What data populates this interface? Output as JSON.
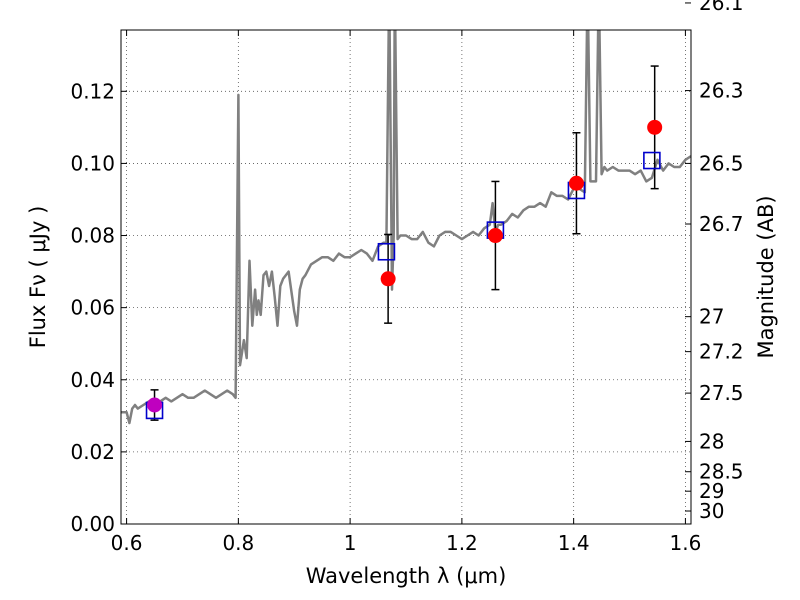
{
  "chart_data": {
    "type": "line",
    "xlabel": "Wavelength  λ (μm)",
    "ylabel": "Flux  Fν ( μJy )",
    "ylabel_right": "Magnitude (AB)",
    "xlim": [
      0.59,
      1.61
    ],
    "ylim": [
      0.0,
      0.137
    ],
    "grid": true,
    "x_ticks": [
      0.6,
      0.8,
      1.0,
      1.2,
      1.4,
      1.6
    ],
    "x_tick_labels": [
      "0.6",
      "0.8",
      "1",
      "1.2",
      "1.4",
      "1.6"
    ],
    "y_ticks": [
      0.0,
      0.02,
      0.04,
      0.06,
      0.08,
      0.1,
      0.12
    ],
    "y_tick_labels": [
      "0.00",
      "0.02",
      "0.04",
      "0.06",
      "0.08",
      "0.10",
      "0.12"
    ],
    "mag_ticks": [
      {
        "flux": 0.1445,
        "label": "26.1"
      },
      {
        "flux": 0.1202,
        "label": "26.3"
      },
      {
        "flux": 0.1,
        "label": "26.5"
      },
      {
        "flux": 0.0832,
        "label": "26.7"
      },
      {
        "flux": 0.0575,
        "label": "27"
      },
      {
        "flux": 0.0478,
        "label": "27.2"
      },
      {
        "flux": 0.0363,
        "label": "27.5"
      },
      {
        "flux": 0.0229,
        "label": "28"
      },
      {
        "flux": 0.0145,
        "label": "28.5"
      },
      {
        "flux": 0.0091,
        "label": "29"
      },
      {
        "flux": 0.0036,
        "label": "30"
      }
    ],
    "colors": {
      "model": "#808080",
      "observed": "#ff0000",
      "observed_first": "#bf00bf",
      "model_box": "#0000cc",
      "errorbar": "#000000",
      "grid": "#555555"
    },
    "model_spectrum": {
      "x": [
        0.59,
        0.6,
        0.605,
        0.61,
        0.615,
        0.62,
        0.63,
        0.64,
        0.65,
        0.66,
        0.67,
        0.68,
        0.69,
        0.7,
        0.71,
        0.72,
        0.73,
        0.74,
        0.75,
        0.76,
        0.77,
        0.78,
        0.79,
        0.795,
        0.8,
        0.803,
        0.806,
        0.81,
        0.815,
        0.82,
        0.825,
        0.83,
        0.833,
        0.836,
        0.84,
        0.845,
        0.85,
        0.855,
        0.86,
        0.865,
        0.87,
        0.875,
        0.88,
        0.89,
        0.9,
        0.905,
        0.91,
        0.915,
        0.92,
        0.93,
        0.94,
        0.95,
        0.96,
        0.97,
        0.98,
        0.99,
        1.0,
        1.01,
        1.02,
        1.03,
        1.04,
        1.05,
        1.06,
        1.065,
        1.07,
        1.075,
        1.078,
        1.08,
        1.085,
        1.09,
        1.1,
        1.11,
        1.12,
        1.13,
        1.14,
        1.15,
        1.16,
        1.17,
        1.18,
        1.19,
        1.2,
        1.21,
        1.22,
        1.23,
        1.24,
        1.25,
        1.255,
        1.26,
        1.265,
        1.27,
        1.28,
        1.29,
        1.3,
        1.31,
        1.32,
        1.33,
        1.34,
        1.35,
        1.36,
        1.37,
        1.38,
        1.39,
        1.4,
        1.41,
        1.42,
        1.425,
        1.43,
        1.44,
        1.445,
        1.45,
        1.455,
        1.46,
        1.47,
        1.48,
        1.49,
        1.5,
        1.51,
        1.52,
        1.53,
        1.54,
        1.55,
        1.56,
        1.57,
        1.58,
        1.59,
        1.6,
        1.61
      ],
      "y": [
        0.031,
        0.031,
        0.028,
        0.032,
        0.033,
        0.032,
        0.033,
        0.034,
        0.033,
        0.034,
        0.035,
        0.034,
        0.035,
        0.036,
        0.035,
        0.035,
        0.036,
        0.037,
        0.036,
        0.035,
        0.036,
        0.037,
        0.036,
        0.035,
        0.119,
        0.044,
        0.047,
        0.051,
        0.046,
        0.073,
        0.055,
        0.065,
        0.058,
        0.062,
        0.058,
        0.069,
        0.07,
        0.066,
        0.07,
        0.063,
        0.055,
        0.066,
        0.068,
        0.07,
        0.059,
        0.055,
        0.065,
        0.068,
        0.069,
        0.072,
        0.073,
        0.074,
        0.074,
        0.073,
        0.075,
        0.074,
        0.074,
        0.075,
        0.076,
        0.075,
        0.073,
        0.077,
        0.078,
        0.078,
        0.15,
        0.065,
        0.08,
        0.15,
        0.079,
        0.08,
        0.08,
        0.079,
        0.079,
        0.081,
        0.078,
        0.077,
        0.08,
        0.081,
        0.081,
        0.08,
        0.079,
        0.08,
        0.081,
        0.08,
        0.082,
        0.083,
        0.089,
        0.081,
        0.083,
        0.083,
        0.084,
        0.086,
        0.085,
        0.087,
        0.088,
        0.088,
        0.089,
        0.088,
        0.092,
        0.091,
        0.091,
        0.09,
        0.093,
        0.093,
        0.092,
        0.15,
        0.095,
        0.095,
        0.15,
        0.097,
        0.099,
        0.098,
        0.099,
        0.098,
        0.098,
        0.098,
        0.097,
        0.098,
        0.095,
        0.096,
        0.101,
        0.098,
        0.1,
        0.099,
        0.099,
        0.101,
        0.102
      ]
    },
    "observed": [
      {
        "x": 0.65,
        "y": 0.033,
        "err": 0.0042,
        "color": "#bf00bf"
      },
      {
        "x": 1.068,
        "y": 0.068,
        "err": 0.0123
      },
      {
        "x": 1.26,
        "y": 0.08,
        "err": 0.015
      },
      {
        "x": 1.405,
        "y": 0.0945,
        "err": 0.014
      },
      {
        "x": 1.545,
        "y": 0.11,
        "err": 0.017
      }
    ],
    "model_boxes": [
      {
        "x": 0.65,
        "y": 0.0315
      },
      {
        "x": 1.065,
        "y": 0.0755
      },
      {
        "x": 1.26,
        "y": 0.0815
      },
      {
        "x": 1.405,
        "y": 0.0925
      },
      {
        "x": 1.54,
        "y": 0.1008
      }
    ]
  }
}
